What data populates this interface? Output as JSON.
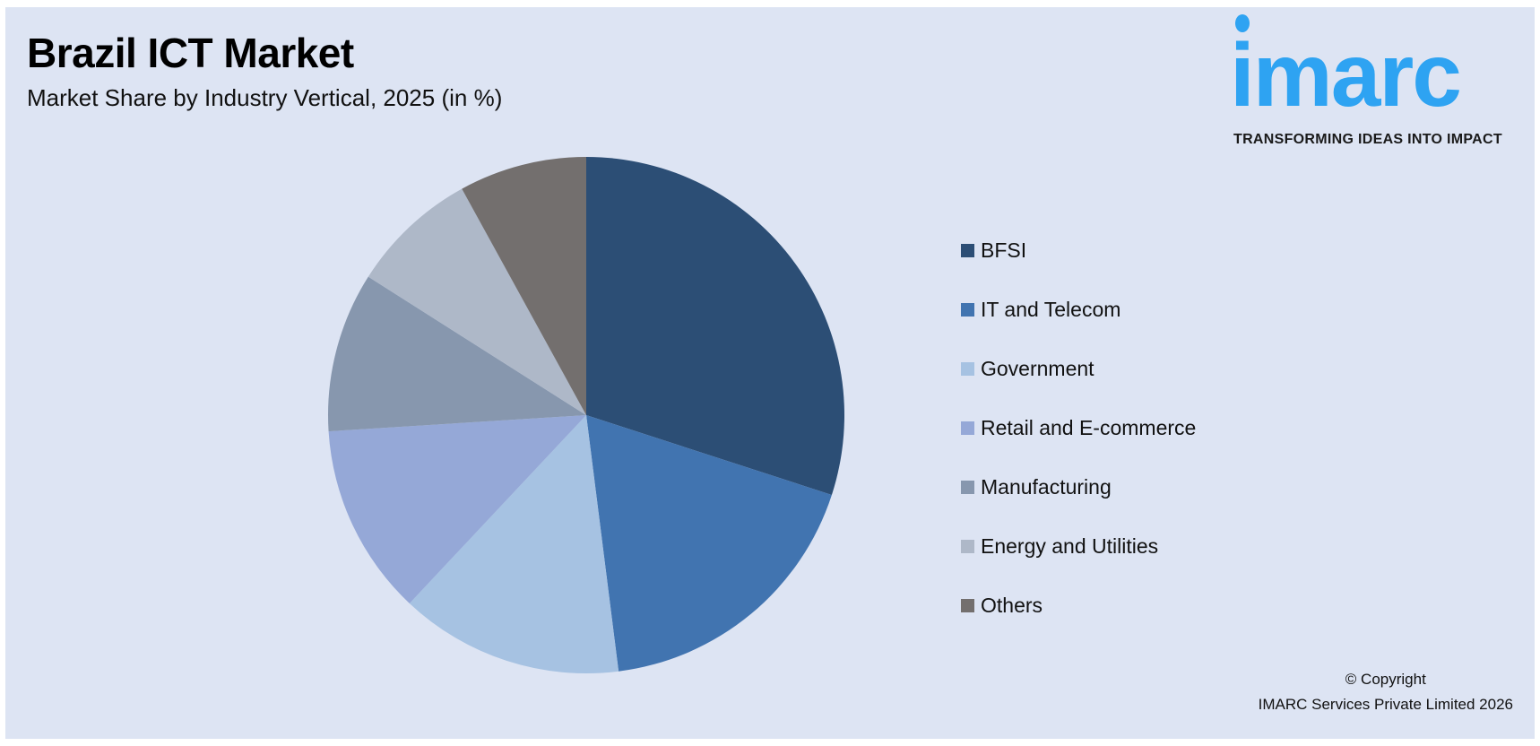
{
  "title": "Brazil ICT Market",
  "subtitle": "Market Share by Industry Vertical, 2025 (in %)",
  "logo": {
    "text": "imarc",
    "tagline": "TRANSFORMING IDEAS INTO IMPACT"
  },
  "copyright": {
    "line1": "© Copyright",
    "line2": "IMARC Services Private Limited 2026"
  },
  "chart_data": {
    "type": "pie",
    "title": "Brazil ICT Market",
    "subtitle": "Market Share by Industry Vertical, 2025 (in %)",
    "categories": [
      "BFSI",
      "IT and Telecom",
      "Government",
      "Retail and E-commerce",
      "Manufacturing",
      "Energy and Utilities",
      "Others"
    ],
    "values": [
      30,
      18,
      14,
      12,
      10,
      8,
      8
    ],
    "colors": [
      "#2c4e75",
      "#4174b0",
      "#a6c2e2",
      "#95a8d7",
      "#8797ae",
      "#aeb8c8",
      "#736f6e"
    ],
    "start_angle": "12 o'clock",
    "direction": "clockwise",
    "legend_position": "right"
  }
}
